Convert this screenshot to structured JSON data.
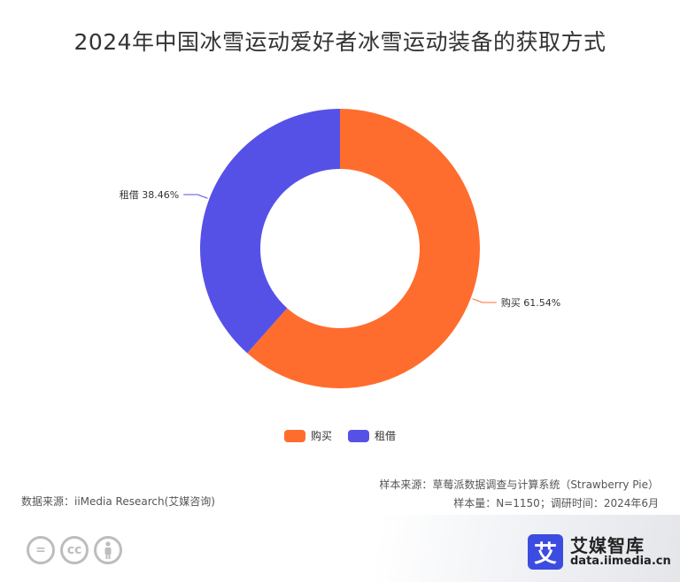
{
  "title": "2024年中国冰雪运动爱好者冰雪运动装备的获取方式",
  "chart_data": {
    "type": "pie",
    "donut": true,
    "slices": [
      {
        "name": "购买",
        "value": 61.54,
        "label": "购买 61.54%",
        "color": "#ff6d2e"
      },
      {
        "name": "租借",
        "value": 38.46,
        "label": "租借 38.46%",
        "color": "#5651e6"
      }
    ],
    "legend": [
      "购买",
      "租借"
    ],
    "legend_position": "bottom-center"
  },
  "source": {
    "left": "数据来源：iiMedia Research(艾媒咨询)",
    "right_line1": "样本来源：草莓派数据调查与计算系统（Strawberry Pie）",
    "right_line2": "样本量：N=1150；调研时间：2024年6月"
  },
  "brand": {
    "logo_char": "艾",
    "name": "艾媒智库",
    "url": "data.iimedia.cn"
  },
  "icons": [
    "equals-icon",
    "cc-icon",
    "person-icon"
  ],
  "cc": {
    "equals": "=",
    "cc": "cc"
  }
}
